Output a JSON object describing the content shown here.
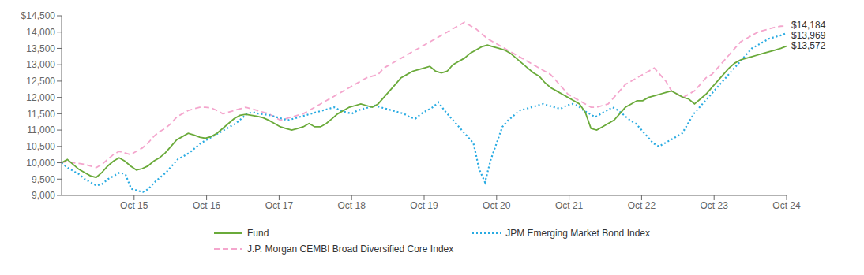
{
  "chart_data": {
    "type": "line",
    "xlim": [
      0,
      120
    ],
    "xticks": [
      {
        "value": 12,
        "label": "Oct 15"
      },
      {
        "value": 24,
        "label": "Oct 16"
      },
      {
        "value": 36,
        "label": "Oct 17"
      },
      {
        "value": 48,
        "label": "Oct 18"
      },
      {
        "value": 60,
        "label": "Oct 19"
      },
      {
        "value": 72,
        "label": "Oct 20"
      },
      {
        "value": 84,
        "label": "Oct 21"
      },
      {
        "value": 96,
        "label": "Oct 22"
      },
      {
        "value": 108,
        "label": "Oct 23"
      },
      {
        "value": 120,
        "label": "Oct 24"
      }
    ],
    "ylim": [
      9000,
      14500
    ],
    "yticks": [
      {
        "value": 9000,
        "label": "9,000"
      },
      {
        "value": 9500,
        "label": "9,500"
      },
      {
        "value": 10000,
        "label": "10,000"
      },
      {
        "value": 10500,
        "label": "10,500"
      },
      {
        "value": 11000,
        "label": "11,000"
      },
      {
        "value": 11500,
        "label": "11,500"
      },
      {
        "value": 12000,
        "label": "12,000"
      },
      {
        "value": 12500,
        "label": "12,500"
      },
      {
        "value": 13000,
        "label": "13,000"
      },
      {
        "value": 13500,
        "label": "13,500"
      },
      {
        "value": 14000,
        "label": "14,000"
      },
      {
        "value": 14500,
        "label": "$14,500"
      }
    ],
    "grid": false,
    "legend": "bottom",
    "series": [
      {
        "name": "Fund",
        "color": "#6aaa3a",
        "line_style": "solid",
        "values": [
          10000,
          10100,
          9950,
          9800,
          9700,
          9600,
          9550,
          9700,
          9900,
          10050,
          10150,
          10050,
          9900,
          9780,
          9820,
          9900,
          10050,
          10150,
          10300,
          10500,
          10700,
          10800,
          10900,
          10850,
          10780,
          10750,
          10800,
          10900,
          11050,
          11200,
          11350,
          11450,
          11480,
          11450,
          11420,
          11380,
          11300,
          11200,
          11100,
          11050,
          11000,
          11050,
          11100,
          11200,
          11100,
          11100,
          11200,
          11350,
          11500,
          11600,
          11700,
          11750,
          11800,
          11750,
          11700,
          11800,
          12000,
          12200,
          12400,
          12600,
          12700,
          12800,
          12850,
          12900,
          12950,
          12800,
          12750,
          12800,
          13000,
          13100,
          13200,
          13350,
          13450,
          13550,
          13600,
          13550,
          13500,
          13450,
          13350,
          13200,
          13050,
          12900,
          12750,
          12650,
          12450,
          12300,
          12200,
          12100,
          12000,
          11900,
          11800,
          11550,
          11050,
          11000,
          11100,
          11200,
          11300,
          11500,
          11700,
          11800,
          11900,
          11900,
          12000,
          12050,
          12100,
          12150,
          12200,
          12100,
          12000,
          11950,
          11800,
          11950,
          12100,
          12300,
          12500,
          12700,
          12900,
          13050,
          13150,
          13200,
          13250,
          13300,
          13350,
          13400,
          13450,
          13500,
          13572
        ]
      },
      {
        "name": "JPM Emerging Market Bond Index",
        "color": "#29abe2",
        "line_style": "dotted",
        "values": [
          10000,
          9850,
          9750,
          9650,
          9500,
          9400,
          9300,
          9350,
          9500,
          9600,
          9700,
          9650,
          9200,
          9150,
          9100,
          9200,
          9400,
          9550,
          9700,
          9900,
          10100,
          10200,
          10300,
          10450,
          10600,
          10700,
          10800,
          10900,
          11000,
          11100,
          11200,
          11350,
          11500,
          11550,
          11500,
          11480,
          11450,
          11400,
          11350,
          11300,
          11350,
          11400,
          11450,
          11500,
          11550,
          11600,
          11650,
          11700,
          11600,
          11550,
          11500,
          11600,
          11650,
          11700,
          11750,
          11700,
          11650,
          11600,
          11550,
          11500,
          11400,
          11350,
          11500,
          11600,
          11700,
          11850,
          11600,
          11400,
          11200,
          11000,
          10800,
          10600,
          9800,
          9400,
          10100,
          10600,
          11100,
          11300,
          11450,
          11600,
          11650,
          11700,
          11750,
          11800,
          11750,
          11700,
          11650,
          11750,
          11800,
          11750,
          11600,
          11500,
          11400,
          11500,
          11600,
          11700,
          11600,
          11450,
          11300,
          11200,
          11000,
          10800,
          10600,
          10500,
          10600,
          10700,
          10800,
          10900,
          11200,
          11500,
          11700,
          11900,
          12100,
          12300,
          12500,
          12700,
          12900,
          13100,
          13300,
          13500,
          13600,
          13700,
          13800,
          13850,
          13900,
          13969
        ]
      },
      {
        "name": "J.P. Morgan CEMBI Broad Diversified Core Index",
        "color": "#f4a6cd",
        "line_style": "dashed",
        "values": [
          10000,
          10050,
          10000,
          9980,
          9950,
          9900,
          9850,
          9950,
          10100,
          10250,
          10350,
          10300,
          10250,
          10350,
          10450,
          10600,
          10800,
          10950,
          11050,
          11200,
          11400,
          11500,
          11600,
          11650,
          11700,
          11700,
          11680,
          11600,
          11500,
          11550,
          11600,
          11650,
          11700,
          11650,
          11600,
          11550,
          11500,
          11400,
          11300,
          11350,
          11400,
          11450,
          11500,
          11600,
          11700,
          11800,
          11900,
          12000,
          12100,
          12200,
          12300,
          12400,
          12500,
          12600,
          12650,
          12700,
          12900,
          13000,
          13100,
          13200,
          13300,
          13400,
          13500,
          13600,
          13700,
          13800,
          13900,
          14000,
          14100,
          14200,
          14300,
          14200,
          14100,
          13950,
          13800,
          13700,
          13600,
          13500,
          13400,
          13300,
          13200,
          13100,
          13000,
          12900,
          12800,
          12700,
          12500,
          12300,
          12100,
          12000,
          11900,
          11800,
          11700,
          11700,
          11750,
          11800,
          12000,
          12200,
          12400,
          12500,
          12600,
          12700,
          12800,
          12900,
          12700,
          12500,
          12200,
          12100,
          12000,
          12100,
          12200,
          12400,
          12600,
          12700,
          12900,
          13100,
          13300,
          13500,
          13700,
          13800,
          13900,
          14000,
          14050,
          14100,
          14150,
          14180,
          14184
        ]
      }
    ],
    "annotations": [
      {
        "series": "J.P. Morgan CEMBI Broad Diversified Core Index",
        "text": "$14,184"
      },
      {
        "series": "JPM Emerging Market Bond Index",
        "text": "$13,969"
      },
      {
        "series": "Fund",
        "text": "$13,572"
      }
    ]
  }
}
